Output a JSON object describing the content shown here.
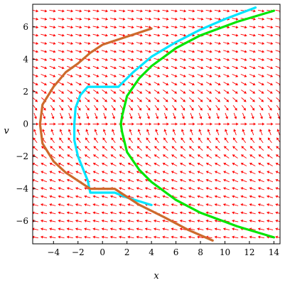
{
  "chart_data": {
    "type": "line",
    "title": "",
    "xlabel": "x",
    "ylabel": "v",
    "xlim": [
      -5.7,
      14.5
    ],
    "ylim": [
      -7.4,
      7.4
    ],
    "x_ticks": [
      -4,
      -2,
      0,
      2,
      4,
      6,
      8,
      10,
      12,
      14
    ],
    "y_ticks": [
      -6,
      -4,
      -2,
      0,
      2,
      4,
      6
    ],
    "grid": false,
    "legend": "none",
    "direction_field": {
      "color": "#ff0000",
      "field": "dx/dt = v, dv/dt = -sign(v)",
      "x_samples": [
        -5.5,
        -4.79,
        -4.08,
        -3.37,
        -2.66,
        -1.95,
        -1.24,
        -0.53,
        0.18,
        0.89,
        1.6,
        2.31,
        3.02,
        3.73,
        4.44,
        5.15,
        5.86,
        6.57,
        7.28,
        7.99,
        8.7,
        9.41,
        10.12,
        10.83,
        11.54,
        12.25,
        12.96,
        13.67,
        14.38
      ],
      "y_samples": [
        -7.0,
        -6.5,
        -6.0,
        -5.5,
        -5.0,
        -4.5,
        -4.0,
        -3.5,
        -3.0,
        -2.5,
        -2.0,
        -1.5,
        -1.0,
        -0.5,
        0.0,
        0.5,
        1.0,
        1.5,
        2.0,
        2.5,
        3.0,
        3.5,
        4.0,
        4.5,
        5.0,
        5.5,
        6.0,
        6.5,
        7.0
      ]
    },
    "series": [
      {
        "color": "#00e600",
        "points": [
          [
            14,
            -7
          ],
          [
            11,
            -6.32
          ],
          [
            8,
            -5.48
          ],
          [
            6,
            -4.69
          ],
          [
            4,
            -3.58
          ],
          [
            3,
            -2.83
          ],
          [
            2,
            -1.73
          ],
          [
            1.6,
            -0.5
          ],
          [
            1.5,
            0
          ],
          [
            1.6,
            0.5
          ],
          [
            2,
            1.73
          ],
          [
            3,
            2.83
          ],
          [
            4,
            3.58
          ],
          [
            6,
            4.69
          ],
          [
            8,
            5.48
          ],
          [
            11,
            6.32
          ],
          [
            14,
            7
          ]
        ]
      },
      {
        "color": "#00e5ff",
        "points": [
          [
            4,
            -5
          ],
          [
            2,
            -4.54
          ],
          [
            1,
            -4.24
          ],
          [
            -1,
            -4.24
          ],
          [
            -1.2,
            -3.5
          ],
          [
            -2,
            -2
          ],
          [
            -2.3,
            -1
          ],
          [
            -2.3,
            0
          ],
          [
            -2.2,
            1
          ],
          [
            -1.8,
            1.8
          ],
          [
            -1.2,
            2.3
          ],
          [
            1.3,
            2.3
          ],
          [
            2.5,
            3.2
          ],
          [
            4,
            4.16
          ],
          [
            6,
            5.06
          ],
          [
            8,
            5.83
          ],
          [
            10,
            6.48
          ],
          [
            12.5,
            7.2
          ]
        ]
      },
      {
        "color": "#cd6a2c",
        "points": [
          [
            9,
            -7.2
          ],
          [
            7,
            -6.54
          ],
          [
            5,
            -5.74
          ],
          [
            3,
            -4.99
          ],
          [
            1,
            -4
          ],
          [
            -1,
            -4
          ],
          [
            -2,
            -3.5
          ],
          [
            -3,
            -3
          ],
          [
            -4,
            -2.3
          ],
          [
            -4.9,
            -1.2
          ],
          [
            -5.1,
            0
          ],
          [
            -4.9,
            1.2
          ],
          [
            -4,
            2.3
          ],
          [
            -3,
            3.2
          ],
          [
            -2,
            3.74
          ],
          [
            -1,
            4.4
          ],
          [
            0,
            4.9
          ],
          [
            2,
            5.4
          ],
          [
            4,
            5.9
          ]
        ]
      }
    ]
  }
}
